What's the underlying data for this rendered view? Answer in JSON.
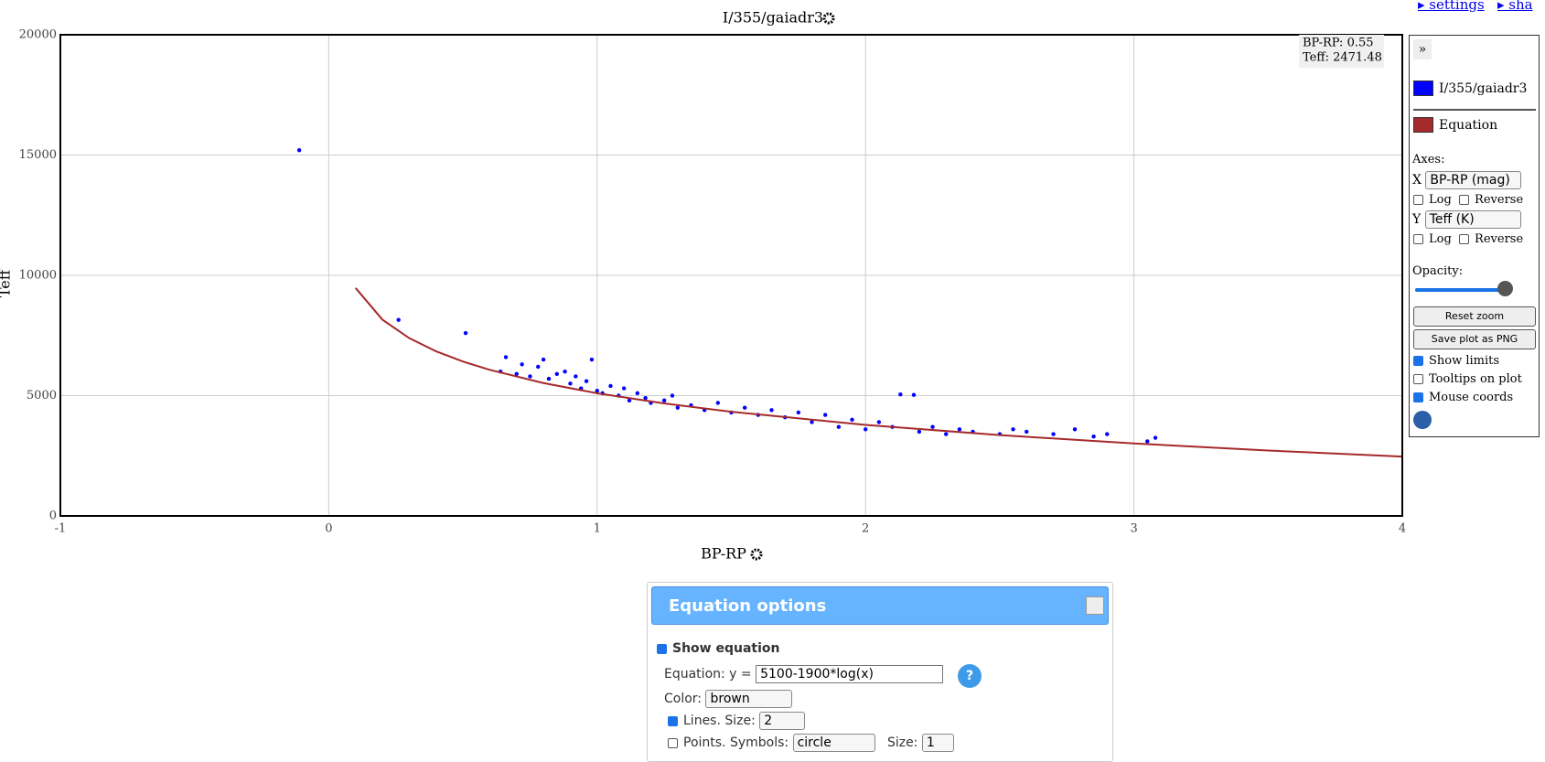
{
  "chart_data": {
    "type": "scatter",
    "title": "I/355/gaiadr3",
    "x_label": "BP-RP",
    "y_label": "Teff",
    "xlim": [
      -1,
      4
    ],
    "ylim": [
      0,
      20000
    ],
    "xticks": [
      -1,
      0,
      1,
      2,
      3,
      4
    ],
    "yticks": [
      0,
      5000,
      10000,
      15000,
      20000
    ],
    "grid": true,
    "series": [
      {
        "name": "I/355/gaiadr3",
        "color": "#0000ff",
        "type": "scatter",
        "x": [
          -0.11,
          0.26,
          0.51,
          0.64,
          0.66,
          0.7,
          0.72,
          0.75,
          0.78,
          0.8,
          0.82,
          0.85,
          0.88,
          0.9,
          0.92,
          0.94,
          0.96,
          0.98,
          1.0,
          1.02,
          1.05,
          1.08,
          1.1,
          1.12,
          1.15,
          1.18,
          1.2,
          1.25,
          1.28,
          1.3,
          1.35,
          1.4,
          1.45,
          1.5,
          1.55,
          1.6,
          1.65,
          1.7,
          1.75,
          1.8,
          1.85,
          1.9,
          1.95,
          2.0,
          2.05,
          2.1,
          2.13,
          2.18,
          2.2,
          2.25,
          2.3,
          2.35,
          2.4,
          2.5,
          2.55,
          2.6,
          2.7,
          2.78,
          2.85,
          2.9,
          3.05,
          3.08
        ],
        "values": [
          15200,
          8150,
          7600,
          6000,
          6600,
          5900,
          6300,
          5800,
          6200,
          6500,
          5700,
          5900,
          6000,
          5500,
          5800,
          5300,
          5600,
          6500,
          5200,
          5100,
          5400,
          5000,
          5300,
          4800,
          5100,
          4900,
          4700,
          4800,
          5000,
          4500,
          4600,
          4400,
          4700,
          4300,
          4500,
          4200,
          4400,
          4100,
          4300,
          3900,
          4200,
          3700,
          4000,
          3600,
          3900,
          3700,
          5050,
          5030,
          3500,
          3700,
          3400,
          3600,
          3500,
          3400,
          3600,
          3500,
          3400,
          3600,
          3300,
          3400,
          3100,
          3250
        ]
      },
      {
        "name": "Equation",
        "color": "#a52a2a",
        "type": "line",
        "x": [
          0.1,
          0.2,
          0.3,
          0.4,
          0.5,
          0.6,
          0.8,
          1,
          1.25,
          1.5,
          2,
          2.5,
          3,
          3.5,
          4
        ],
        "values": [
          9475,
          8158,
          7388,
          6841,
          6417,
          6071,
          5524,
          5100,
          4676,
          4330,
          3783,
          3359,
          3013,
          2720,
          2466
        ]
      }
    ]
  },
  "ui": {
    "links": [
      "▸ settings",
      "▸ sha"
    ],
    "mouse_coords": [
      "BP-RP: 0.55",
      "Teff: 2471.48"
    ],
    "panel": {
      "toggle": "»",
      "axes": "Axes:",
      "x": "X",
      "x_select": "BP-RP (mag)",
      "y": "Y",
      "y_select": "Teff (K)",
      "log": "Log",
      "reverse": "Reverse",
      "opacity": "Opacity:",
      "reset": "Reset zoom",
      "save": "Save plot as PNG",
      "options": [
        {
          "label": "Show limits",
          "checked": true
        },
        {
          "label": "Tooltips on plot",
          "checked": false
        },
        {
          "label": "Mouse coords",
          "checked": true
        }
      ]
    },
    "dialog": {
      "title": "Equation options",
      "show": "Show equation",
      "equation_label": "Equation: y =",
      "equation": "5100-1900*log(x)",
      "help": "?",
      "color_label": "Color:",
      "color": "brown",
      "lines_label": "Lines. Size:",
      "line_size": "2",
      "points_label": "Points. Symbols:",
      "symbol": "circle",
      "size_label": "Size:",
      "size": "1"
    }
  }
}
